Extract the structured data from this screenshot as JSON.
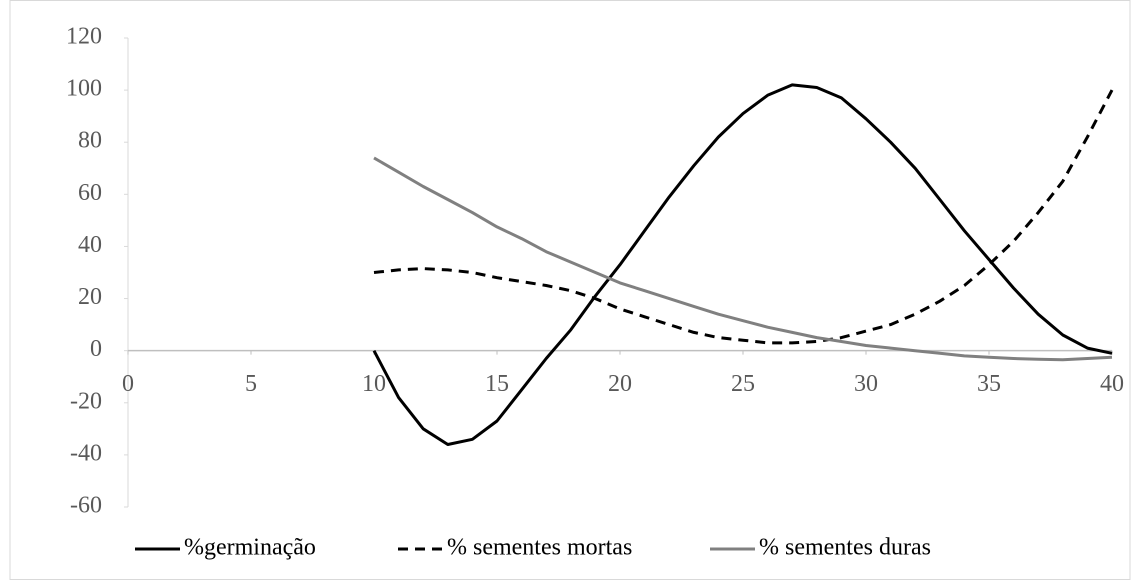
{
  "chart_data": {
    "type": "line",
    "x": [
      10,
      11,
      12,
      13,
      14,
      15,
      16,
      17,
      18,
      19,
      20,
      21,
      22,
      23,
      24,
      25,
      26,
      27,
      28,
      29,
      30,
      31,
      32,
      33,
      34,
      35,
      36,
      37,
      38,
      39,
      40
    ],
    "series": [
      {
        "name": "%germinação",
        "color": "#000000",
        "style": "solid",
        "values": [
          0,
          -18,
          -30,
          -36,
          -34,
          -27,
          -15,
          -3,
          8,
          21,
          33,
          46,
          59,
          71,
          82,
          91,
          98,
          102,
          101,
          97,
          89,
          80,
          70,
          58,
          46,
          35,
          24,
          14,
          6,
          1,
          -1
        ]
      },
      {
        "name": "% sementes mortas",
        "color": "#000000",
        "style": "dashed",
        "values": [
          30,
          31,
          31.5,
          31,
          30,
          28,
          26.5,
          25,
          23,
          20,
          16,
          13,
          10,
          7,
          5,
          4,
          3,
          3,
          3.5,
          5,
          7.5,
          10,
          14,
          19,
          25,
          33,
          42,
          53,
          65,
          82,
          100
        ]
      },
      {
        "name": "% sementes duras",
        "color": "#808080",
        "style": "solid",
        "values": [
          74,
          68.5,
          63,
          58,
          53,
          47.5,
          43,
          38,
          34,
          30,
          26,
          23,
          20,
          17,
          14,
          11.5,
          9,
          7,
          5,
          3.5,
          2,
          1,
          0,
          -1,
          -2,
          -2.5,
          -3,
          -3.3,
          -3.5,
          -3,
          -2.5
        ]
      }
    ],
    "xlim": [
      0,
      40
    ],
    "xticks": [
      0,
      5,
      10,
      15,
      20,
      25,
      30,
      35,
      40
    ],
    "ylim": [
      -60,
      120
    ],
    "yticks": [
      -60,
      -40,
      -20,
      0,
      20,
      40,
      60,
      80,
      100,
      120
    ],
    "legend": "bottom"
  }
}
